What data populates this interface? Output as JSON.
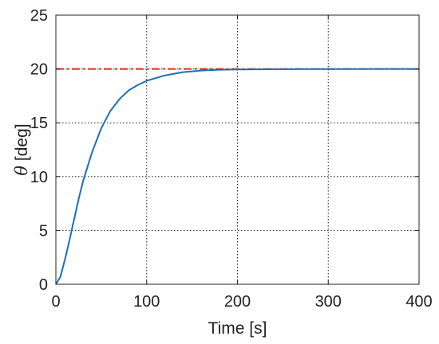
{
  "chart_data": {
    "type": "line",
    "xlabel": "Time [s]",
    "ylabel_symbol": "θ",
    "ylabel_unit": " [deg]",
    "xlim": [
      0,
      400
    ],
    "ylim": [
      0,
      25
    ],
    "xticks": [
      "0",
      "100",
      "200",
      "300",
      "400"
    ],
    "yticks": [
      "0",
      "5",
      "10",
      "15",
      "20",
      "25"
    ],
    "grid": true,
    "grid_style": "dotted",
    "series": [
      {
        "style": "dash-dot",
        "color": "#e8261c",
        "x": [
          0,
          400
        ],
        "y": [
          20,
          20
        ]
      },
      {
        "style": "solid",
        "color": "#1f6fb2",
        "x": [
          0,
          5,
          10,
          15,
          20,
          25,
          30,
          40,
          50,
          60,
          70,
          80,
          90,
          100,
          120,
          140,
          160,
          180,
          200,
          250,
          300,
          350,
          400
        ],
        "y": [
          0,
          0.7,
          2.3,
          4.1,
          6.0,
          7.9,
          9.6,
          12.3,
          14.5,
          16.1,
          17.2,
          18.0,
          18.5,
          18.9,
          19.4,
          19.7,
          19.85,
          19.92,
          19.95,
          19.98,
          19.99,
          20.0,
          20.0
        ]
      }
    ]
  }
}
